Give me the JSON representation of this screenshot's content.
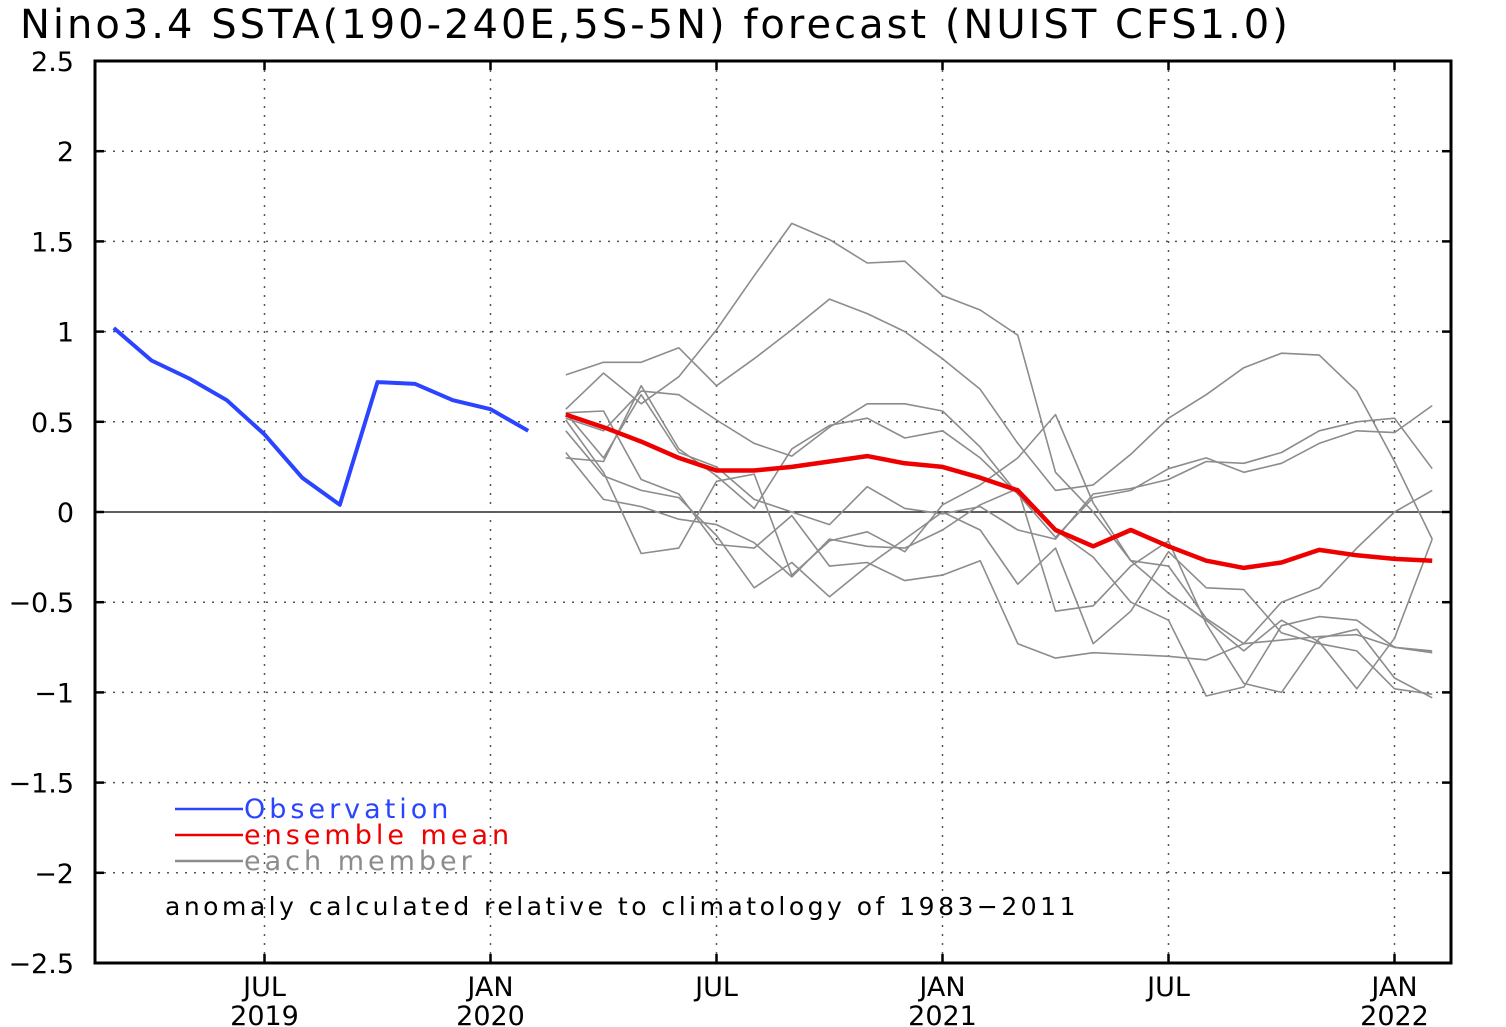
{
  "chart_data": {
    "type": "line",
    "title": "Nino3.4 SSTA(190-240E,5S-5N) forecast (NUIST CFS1.0)",
    "xlabel": "",
    "ylabel": "",
    "ylim": [
      -2.5,
      2.5
    ],
    "xlim": [
      "2019-03",
      "2022-03"
    ],
    "grid": true,
    "zero_line": true,
    "y_ticks": [
      {
        "value": 2.5,
        "label": "2.5"
      },
      {
        "value": 2,
        "label": "2"
      },
      {
        "value": 1.5,
        "label": "1.5"
      },
      {
        "value": 1,
        "label": "1"
      },
      {
        "value": 0.5,
        "label": "0.5"
      },
      {
        "value": 0,
        "label": "0"
      },
      {
        "value": -0.5,
        "label": "−0.5"
      },
      {
        "value": -1,
        "label": "−1"
      },
      {
        "value": -1.5,
        "label": "−1.5"
      },
      {
        "value": -2,
        "label": "−2"
      },
      {
        "value": -2.5,
        "label": "−2.5"
      }
    ],
    "x_ticks": [
      {
        "date": "2019-07",
        "label": "JUL",
        "year": "2019"
      },
      {
        "date": "2020-01",
        "label": "JAN",
        "year": "2020"
      },
      {
        "date": "2020-07",
        "label": "JUL",
        "year": ""
      },
      {
        "date": "2021-01",
        "label": "JAN",
        "year": "2021"
      },
      {
        "date": "2021-07",
        "label": "JUL",
        "year": ""
      },
      {
        "date": "2022-01",
        "label": "JAN",
        "year": "2022"
      }
    ],
    "legend": [
      {
        "label": "Observation",
        "color": "#2a44ff"
      },
      {
        "label": "ensemble mean",
        "color": "#ee0000"
      },
      {
        "label": "each member",
        "color": "#8c8c8c"
      }
    ],
    "legend_position": "bottom-left",
    "annotation": "anomaly calculated relative to climatology of 1983−2011",
    "observation": {
      "color": "#2a44ff",
      "x": [
        "2019-03",
        "2019-04",
        "2019-05",
        "2019-06",
        "2019-07",
        "2019-08",
        "2019-09",
        "2019-10",
        "2019-11",
        "2019-12",
        "2020-01",
        "2020-02"
      ],
      "y": [
        1.02,
        0.84,
        0.74,
        0.62,
        0.43,
        0.19,
        0.04,
        0.72,
        0.71,
        0.62,
        0.57,
        0.45
      ]
    },
    "ensemble_mean": {
      "color": "#ee0000",
      "x": [
        "2020-03",
        "2020-04",
        "2020-05",
        "2020-06",
        "2020-07",
        "2020-08",
        "2020-09",
        "2020-10",
        "2020-11",
        "2020-12",
        "2021-01",
        "2021-02",
        "2021-03",
        "2021-04",
        "2021-05",
        "2021-06",
        "2021-07",
        "2021-08",
        "2021-09",
        "2021-10",
        "2021-11",
        "2021-12",
        "2022-01",
        "2022-02"
      ],
      "y": [
        0.54,
        0.47,
        0.39,
        0.3,
        0.23,
        0.23,
        0.25,
        0.28,
        0.31,
        0.27,
        0.25,
        0.19,
        0.12,
        -0.1,
        -0.19,
        -0.1,
        -0.19,
        -0.27,
        -0.31,
        -0.28,
        -0.21,
        -0.24,
        -0.26,
        -0.27
      ]
    },
    "members": {
      "color": "#8c8c8c",
      "x": [
        "2020-03",
        "2020-04",
        "2020-05",
        "2020-06",
        "2020-07",
        "2020-08",
        "2020-09",
        "2020-10",
        "2020-11",
        "2020-12",
        "2021-01",
        "2021-02",
        "2021-03",
        "2021-04",
        "2021-05",
        "2021-06",
        "2021-07",
        "2021-08",
        "2021-09",
        "2021-10",
        "2021-11",
        "2021-12",
        "2022-01",
        "2022-02"
      ],
      "series": [
        {
          "values": [
            0.76,
            0.83,
            0.83,
            0.91,
            0.7,
            0.85,
            1.01,
            1.18,
            1.1,
            1.0,
            0.85,
            0.68,
            0.38,
            0.12,
            0.15,
            0.32,
            0.52,
            0.65,
            0.8,
            0.88,
            0.87,
            0.67,
            0.28,
            -0.15
          ]
        },
        {
          "values": [
            0.57,
            0.77,
            0.6,
            0.75,
            1.01,
            1.31,
            1.6,
            1.51,
            1.38,
            1.39,
            1.2,
            1.12,
            0.98,
            0.22,
            0.0,
            -0.27,
            -0.45,
            -0.6,
            -0.77,
            -0.6,
            -0.72,
            -0.98,
            -0.7,
            -0.15
          ]
        },
        {
          "values": [
            0.52,
            0.45,
            0.67,
            0.65,
            0.51,
            0.38,
            0.31,
            0.47,
            0.6,
            0.6,
            0.56,
            0.36,
            0.1,
            -0.1,
            -0.25,
            -0.5,
            -0.6,
            -1.02,
            -0.97,
            -0.63,
            -0.58,
            -0.6,
            -0.75,
            -0.78
          ]
        },
        {
          "values": [
            0.3,
            0.28,
            0.7,
            0.35,
            0.2,
            0.02,
            0.35,
            0.48,
            0.52,
            0.41,
            0.45,
            0.3,
            0.1,
            -0.14,
            0.08,
            0.12,
            0.24,
            0.3,
            0.22,
            0.27,
            0.38,
            0.45,
            0.44,
            0.59
          ]
        },
        {
          "values": [
            0.55,
            0.3,
            0.65,
            0.33,
            0.25,
            0.07,
            0.0,
            -0.07,
            0.14,
            0.02,
            -0.01,
            0.03,
            -0.1,
            -0.15,
            0.1,
            0.13,
            0.18,
            0.28,
            0.27,
            0.33,
            0.45,
            0.5,
            0.52,
            0.24
          ]
        },
        {
          "values": [
            0.51,
            0.22,
            -0.23,
            -0.2,
            0.17,
            0.21,
            -0.35,
            -0.16,
            -0.11,
            -0.22,
            0.04,
            0.15,
            0.3,
            0.54,
            0.05,
            -0.27,
            -0.3,
            -0.59,
            -0.73,
            -0.5,
            -0.42,
            -0.2,
            0.0,
            0.12
          ]
        },
        {
          "values": [
            0.33,
            0.07,
            0.03,
            -0.04,
            -0.07,
            -0.17,
            -0.36,
            -0.15,
            -0.19,
            -0.2,
            -0.1,
            0.04,
            0.13,
            -0.55,
            -0.52,
            -0.3,
            -0.16,
            -0.62,
            -0.95,
            -1.0,
            -0.7,
            -0.65,
            -0.92,
            -1.03
          ]
        },
        {
          "values": [
            0.45,
            0.2,
            0.12,
            0.08,
            -0.13,
            -0.42,
            -0.28,
            -0.47,
            -0.3,
            -0.15,
            0.0,
            -0.1,
            -0.4,
            -0.2,
            -0.73,
            -0.55,
            -0.22,
            -0.42,
            -0.43,
            -0.67,
            -0.73,
            -0.77,
            -0.98,
            -1.01
          ]
        },
        {
          "values": [
            0.55,
            0.56,
            0.18,
            0.1,
            -0.18,
            -0.2,
            -0.02,
            -0.3,
            -0.28,
            -0.38,
            -0.35,
            -0.27,
            -0.73,
            -0.81,
            -0.78,
            -0.79,
            -0.8,
            -0.82,
            -0.73,
            -0.71,
            -0.69,
            -0.68,
            -0.75,
            -0.77
          ]
        }
      ]
    }
  }
}
